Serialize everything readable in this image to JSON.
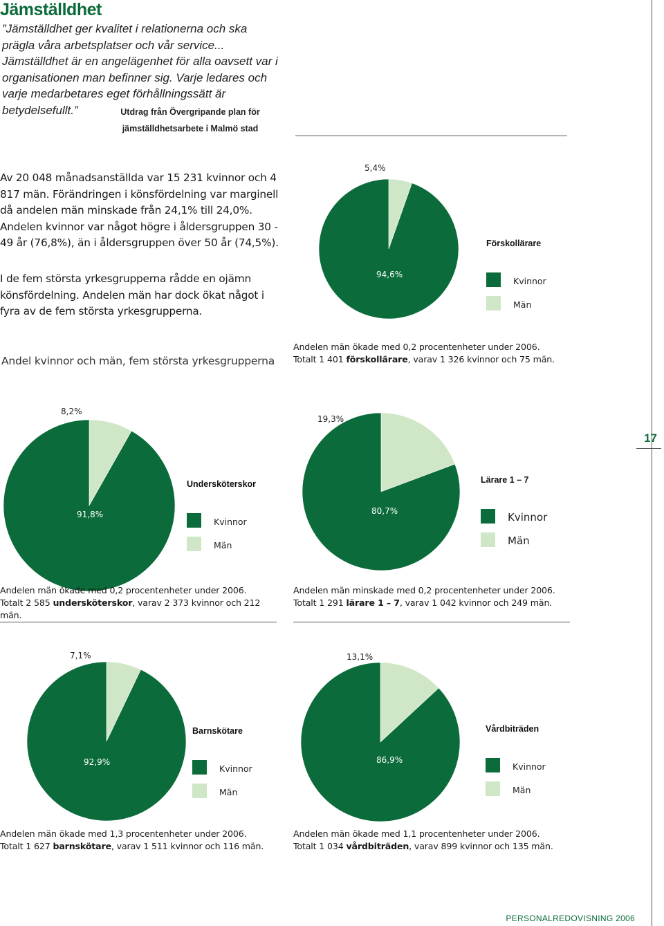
{
  "page": {
    "title": "Jämställdhet",
    "quote": "”Jämställdhet ger kvalitet i relationerna och ska prägla våra arbetsplatser och vår service... Jämställdhet är en angelägenhet för alla oavsett var i organisationen man befinner sig. Varje ledares och varje medarbetares eget förhållningssätt är betydelsefullt.”",
    "quote_source_line1": "Utdrag från Övergripande plan för",
    "quote_source_line2": "jämställdhetsarbete i Malmö stad",
    "paragraph1": "Av 20 048 månadsanställda var 15 231 kvinnor och 4 817 män. Förändringen i könsfördelning var marginell då andelen män minskade från 24,1% till 24,0%. Andelen kvinnor var något högre i åldersgruppen 30 - 49 år (76,8%), än i åldersgruppen över 50 år (74,5%).",
    "paragraph2": "I de fem största yrkesgrupperna rådde en ojämn könsfördelning. Andelen män har dock ökat något i fyra av de fem största yrkesgrupperna.",
    "section_title": "Andel kvinnor och män, fem största yrkesgrupperna",
    "page_number": "17",
    "footer": "PERSONALREDOVISNING 2006"
  },
  "colors": {
    "kvinnor": "#0b6b3a",
    "man": "#cfe7c6"
  },
  "legend": {
    "kvinnor": "Kvinnor",
    "man": "Män"
  },
  "chart_data": [
    {
      "type": "pie",
      "title": "Förskollärare",
      "slices": [
        {
          "label": "94,6%",
          "value": 94.6,
          "color": "#0b6b3a"
        },
        {
          "label": "5,4%",
          "value": 5.4,
          "color": "#cfe7c6"
        }
      ],
      "caption_line1": "Andelen män ökade med 0,2 procentenheter under 2006.",
      "caption_pre": "Totalt 1 401 ",
      "caption_bold": "förskollärare",
      "caption_post": ", varav 1 326 kvinnor och 75 män."
    },
    {
      "type": "pie",
      "title": "Undersköterskor",
      "slices": [
        {
          "label": "91,8%",
          "value": 91.8,
          "color": "#0b6b3a"
        },
        {
          "label": "8,2%",
          "value": 8.2,
          "color": "#cfe7c6"
        }
      ],
      "caption_line1": "Andelen män ökade med 0,2 procentenheter under 2006.",
      "caption_pre": "Totalt 2 585 ",
      "caption_bold": "undersköterskor",
      "caption_post": ", varav 2 373 kvinnor och 212 män."
    },
    {
      "type": "pie",
      "title": "Lärare 1 – 7",
      "slices": [
        {
          "label": "80,7%",
          "value": 80.7,
          "color": "#0b6b3a"
        },
        {
          "label": "19,3%",
          "value": 19.3,
          "color": "#cfe7c6"
        }
      ],
      "caption_line1": "Andelen män minskade med 0,2 procentenheter under 2006.",
      "caption_pre": "Totalt 1 291 ",
      "caption_bold": "lärare 1 – 7",
      "caption_post": ", varav 1 042 kvinnor och 249 män."
    },
    {
      "type": "pie",
      "title": "Barnskötare",
      "slices": [
        {
          "label": "92,9%",
          "value": 92.9,
          "color": "#0b6b3a"
        },
        {
          "label": "7,1%",
          "value": 7.1,
          "color": "#cfe7c6"
        }
      ],
      "caption_line1": "Andelen män ökade med 1,3 procentenheter under 2006.",
      "caption_pre": "Totalt 1 627 ",
      "caption_bold": "barnskötare",
      "caption_post": ", varav 1 511 kvinnor och 116 män."
    },
    {
      "type": "pie",
      "title": "Vårdbiträden",
      "slices": [
        {
          "label": "86,9%",
          "value": 86.9,
          "color": "#0b6b3a"
        },
        {
          "label": "13,1%",
          "value": 13.1,
          "color": "#cfe7c6"
        }
      ],
      "caption_line1": "Andelen män ökade med 1,1 procentenheter under 2006.",
      "caption_pre": "Totalt 1 034 ",
      "caption_bold": "vårdbiträden",
      "caption_post": ", varav 899 kvinnor och 135 män."
    }
  ]
}
